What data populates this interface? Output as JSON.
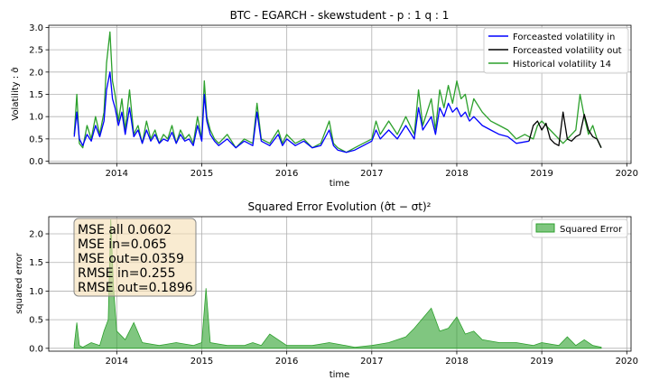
{
  "chart_data": [
    {
      "type": "line",
      "title": "BTC - EGARCH - skewstudent - p : 1 q : 1",
      "xlabel": "time",
      "ylabel": "Volatility : σ̂",
      "xlim": [
        2013.2,
        2020.05
      ],
      "ylim": [
        -0.05,
        3.05
      ],
      "grid": true,
      "legend_position": "top-right",
      "x_ticks": [
        2014,
        2015,
        2016,
        2017,
        2018,
        2019,
        2020
      ],
      "x_tick_labels": [
        "2014",
        "2015",
        "2016",
        "2017",
        "2018",
        "2019",
        "2020"
      ],
      "y_ticks": [
        0.0,
        0.5,
        1.0,
        1.5,
        2.0,
        2.5,
        3.0
      ],
      "y_tick_labels": [
        "0.0",
        "0.5",
        "1.0",
        "1.5",
        "2.0",
        "2.5",
        "3.0"
      ],
      "series": [
        {
          "name": "Historical volatility 14",
          "color": "#2ca02c",
          "x": [
            2013.5,
            2013.53,
            2013.56,
            2013.6,
            2013.65,
            2013.7,
            2013.75,
            2013.8,
            2013.85,
            2013.88,
            2013.92,
            2013.95,
            2013.98,
            2014.02,
            2014.06,
            2014.1,
            2014.15,
            2014.2,
            2014.25,
            2014.3,
            2014.35,
            2014.4,
            2014.45,
            2014.5,
            2014.55,
            2014.6,
            2014.65,
            2014.7,
            2014.75,
            2014.8,
            2014.85,
            2014.9,
            2014.95,
            2015.0,
            2015.03,
            2015.06,
            2015.1,
            2015.15,
            2015.2,
            2015.3,
            2015.4,
            2015.5,
            2015.6,
            2015.65,
            2015.7,
            2015.8,
            2015.9,
            2015.95,
            2016.0,
            2016.1,
            2016.2,
            2016.3,
            2016.4,
            2016.5,
            2016.55,
            2016.6,
            2016.7,
            2016.8,
            2016.9,
            2017.0,
            2017.05,
            2017.1,
            2017.2,
            2017.3,
            2017.4,
            2017.5,
            2017.55,
            2017.6,
            2017.7,
            2017.75,
            2017.8,
            2017.85,
            2017.9,
            2017.95,
            2018.0,
            2018.05,
            2018.1,
            2018.15,
            2018.2,
            2018.3,
            2018.4,
            2018.5,
            2018.6,
            2018.7,
            2018.8,
            2018.9,
            2018.95,
            2019.0,
            2019.1,
            2019.2,
            2019.25,
            2019.3,
            2019.35,
            2019.4,
            2019.45,
            2019.5,
            2019.55,
            2019.6,
            2019.65,
            2019.7
          ],
          "values": [
            0.6,
            1.5,
            0.4,
            0.3,
            0.8,
            0.5,
            1.0,
            0.6,
            1.1,
            2.2,
            2.9,
            1.8,
            1.5,
            0.9,
            1.4,
            0.7,
            1.6,
            0.6,
            0.8,
            0.4,
            0.9,
            0.5,
            0.7,
            0.4,
            0.6,
            0.5,
            0.8,
            0.4,
            0.7,
            0.5,
            0.6,
            0.4,
            1.0,
            0.5,
            1.8,
            1.0,
            0.7,
            0.5,
            0.4,
            0.6,
            0.3,
            0.5,
            0.4,
            1.3,
            0.5,
            0.4,
            0.7,
            0.4,
            0.6,
            0.4,
            0.5,
            0.3,
            0.4,
            0.9,
            0.4,
            0.3,
            0.2,
            0.3,
            0.4,
            0.5,
            0.9,
            0.6,
            0.9,
            0.6,
            1.0,
            0.6,
            1.6,
            0.8,
            1.4,
            0.7,
            1.6,
            1.2,
            1.7,
            1.3,
            1.8,
            1.4,
            1.5,
            1.0,
            1.4,
            1.1,
            0.9,
            0.8,
            0.7,
            0.5,
            0.6,
            0.5,
            0.8,
            0.9,
            0.7,
            0.5,
            0.4,
            0.5,
            0.6,
            0.7,
            1.5,
            1.0,
            0.6,
            0.8,
            0.5,
            0.3
          ]
        },
        {
          "name": "Forceasted volatility in",
          "color": "#0000ff",
          "x": [
            2013.5,
            2013.53,
            2013.56,
            2013.6,
            2013.65,
            2013.7,
            2013.75,
            2013.8,
            2013.85,
            2013.88,
            2013.92,
            2013.95,
            2013.98,
            2014.02,
            2014.06,
            2014.1,
            2014.15,
            2014.2,
            2014.25,
            2014.3,
            2014.35,
            2014.4,
            2014.45,
            2014.5,
            2014.55,
            2014.6,
            2014.65,
            2014.7,
            2014.75,
            2014.8,
            2014.85,
            2014.9,
            2014.95,
            2015.0,
            2015.03,
            2015.06,
            2015.1,
            2015.15,
            2015.2,
            2015.3,
            2015.4,
            2015.5,
            2015.6,
            2015.65,
            2015.7,
            2015.8,
            2015.9,
            2015.95,
            2016.0,
            2016.1,
            2016.2,
            2016.3,
            2016.4,
            2016.5,
            2016.55,
            2016.6,
            2016.7,
            2016.8,
            2016.9,
            2017.0,
            2017.05,
            2017.1,
            2017.2,
            2017.3,
            2017.4,
            2017.5,
            2017.55,
            2017.6,
            2017.7,
            2017.75,
            2017.8,
            2017.85,
            2017.9,
            2017.95,
            2018.0,
            2018.05,
            2018.1,
            2018.15,
            2018.2,
            2018.3,
            2018.4,
            2018.5,
            2018.6,
            2018.7,
            2018.85
          ],
          "values": [
            0.55,
            1.1,
            0.5,
            0.35,
            0.6,
            0.45,
            0.8,
            0.55,
            0.9,
            1.6,
            2.0,
            1.4,
            1.2,
            0.8,
            1.1,
            0.6,
            1.2,
            0.55,
            0.7,
            0.4,
            0.7,
            0.45,
            0.6,
            0.4,
            0.5,
            0.45,
            0.65,
            0.4,
            0.6,
            0.45,
            0.5,
            0.35,
            0.8,
            0.45,
            1.5,
            0.9,
            0.6,
            0.45,
            0.35,
            0.5,
            0.3,
            0.45,
            0.35,
            1.1,
            0.45,
            0.35,
            0.6,
            0.35,
            0.5,
            0.35,
            0.45,
            0.3,
            0.35,
            0.7,
            0.35,
            0.25,
            0.2,
            0.25,
            0.35,
            0.45,
            0.7,
            0.5,
            0.7,
            0.5,
            0.8,
            0.5,
            1.2,
            0.7,
            1.0,
            0.6,
            1.2,
            1.0,
            1.3,
            1.1,
            1.2,
            1.0,
            1.1,
            0.9,
            1.0,
            0.8,
            0.7,
            0.6,
            0.55,
            0.4,
            0.45
          ]
        },
        {
          "name": "Forceasted volatility out",
          "color": "#000000",
          "x": [
            2018.85,
            2018.9,
            2018.95,
            2019.0,
            2019.05,
            2019.1,
            2019.15,
            2019.2,
            2019.25,
            2019.3,
            2019.35,
            2019.4,
            2019.45,
            2019.5,
            2019.55,
            2019.6,
            2019.65,
            2019.7
          ],
          "values": [
            0.45,
            0.8,
            0.9,
            0.7,
            0.85,
            0.5,
            0.4,
            0.35,
            1.1,
            0.5,
            0.45,
            0.55,
            0.6,
            1.05,
            0.7,
            0.55,
            0.5,
            0.3
          ]
        }
      ]
    },
    {
      "type": "area",
      "title": "Squared Error Evolution (σ̂t − σt)²",
      "xlabel": "time",
      "ylabel": "squared error",
      "xlim": [
        2013.2,
        2020.05
      ],
      "ylim": [
        -0.05,
        2.3
      ],
      "grid": true,
      "legend_position": "top-right",
      "x_ticks": [
        2014,
        2015,
        2016,
        2017,
        2018,
        2019,
        2020
      ],
      "x_tick_labels": [
        "2014",
        "2015",
        "2016",
        "2017",
        "2018",
        "2019",
        "2020"
      ],
      "y_ticks": [
        0.0,
        0.5,
        1.0,
        1.5,
        2.0
      ],
      "y_tick_labels": [
        "0.0",
        "0.5",
        "1.0",
        "1.5",
        "2.0"
      ],
      "series": [
        {
          "name": "Squared Error",
          "color": "#2ca02c",
          "x": [
            2013.5,
            2013.53,
            2013.56,
            2013.6,
            2013.7,
            2013.8,
            2013.85,
            2013.9,
            2013.93,
            2013.96,
            2014.0,
            2014.1,
            2014.2,
            2014.3,
            2014.5,
            2014.7,
            2014.9,
            2015.0,
            2015.05,
            2015.1,
            2015.3,
            2015.5,
            2015.6,
            2015.7,
            2015.8,
            2016.0,
            2016.3,
            2016.5,
            2016.8,
            2017.0,
            2017.2,
            2017.4,
            2017.5,
            2017.7,
            2017.8,
            2017.9,
            2018.0,
            2018.1,
            2018.2,
            2018.3,
            2018.5,
            2018.7,
            2018.9,
            2019.0,
            2019.2,
            2019.3,
            2019.4,
            2019.5,
            2019.6,
            2019.7
          ],
          "values": [
            0.05,
            0.45,
            0.05,
            0.02,
            0.1,
            0.05,
            0.3,
            0.5,
            2.25,
            1.1,
            0.3,
            0.15,
            0.45,
            0.1,
            0.05,
            0.1,
            0.05,
            0.1,
            1.05,
            0.1,
            0.05,
            0.05,
            0.1,
            0.05,
            0.25,
            0.05,
            0.05,
            0.1,
            0.02,
            0.05,
            0.1,
            0.2,
            0.35,
            0.7,
            0.3,
            0.35,
            0.55,
            0.25,
            0.3,
            0.15,
            0.1,
            0.1,
            0.05,
            0.1,
            0.05,
            0.2,
            0.05,
            0.15,
            0.05,
            0.02
          ]
        }
      ],
      "stats_box": [
        "MSE all 0.0602",
        "MSE in=0.065",
        "MSE out=0.0359",
        "RMSE in=0.255",
        "RMSE out=0.1896"
      ]
    }
  ]
}
